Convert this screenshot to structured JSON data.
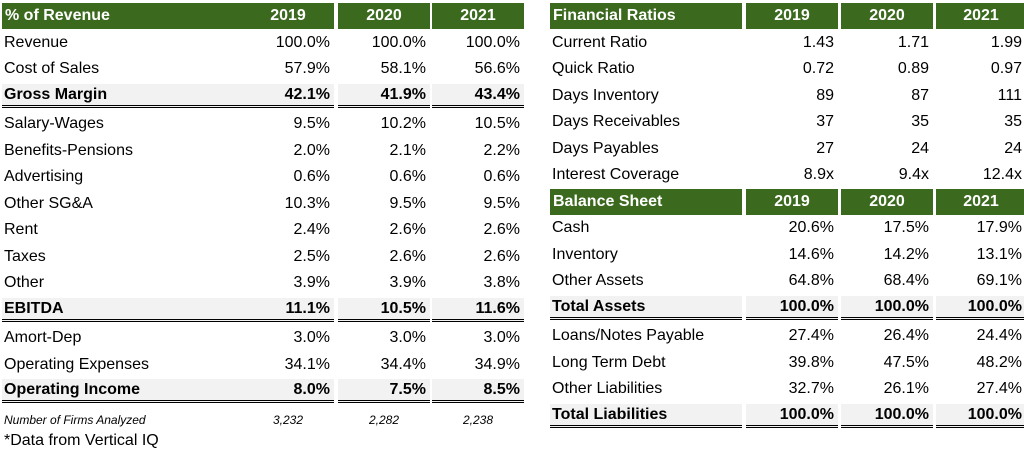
{
  "left_table": {
    "header": {
      "title": "% of Revenue",
      "years": [
        "2019",
        "2020",
        "2021"
      ]
    },
    "rows": [
      {
        "label": "Revenue",
        "values": [
          "100.0%",
          "100.0%",
          "100.0%"
        ],
        "bold": false
      },
      {
        "label": "Cost of Sales",
        "values": [
          "57.9%",
          "58.1%",
          "56.6%"
        ],
        "bold": false
      },
      {
        "label": "Gross Margin",
        "values": [
          "42.1%",
          "41.9%",
          "43.4%"
        ],
        "bold": true
      },
      {
        "label": "Salary-Wages",
        "values": [
          "9.5%",
          "10.2%",
          "10.5%"
        ],
        "bold": false
      },
      {
        "label": "Benefits-Pensions",
        "values": [
          "2.0%",
          "2.1%",
          "2.2%"
        ],
        "bold": false
      },
      {
        "label": "Advertising",
        "values": [
          "0.6%",
          "0.6%",
          "0.6%"
        ],
        "bold": false
      },
      {
        "label": "Other SG&A",
        "values": [
          "10.3%",
          "9.5%",
          "9.5%"
        ],
        "bold": false
      },
      {
        "label": "Rent",
        "values": [
          "2.4%",
          "2.6%",
          "2.6%"
        ],
        "bold": false
      },
      {
        "label": "Taxes",
        "values": [
          "2.5%",
          "2.6%",
          "2.6%"
        ],
        "bold": false
      },
      {
        "label": "Other",
        "values": [
          "3.9%",
          "3.9%",
          "3.8%"
        ],
        "bold": false
      },
      {
        "label": "EBITDA",
        "values": [
          "11.1%",
          "10.5%",
          "11.6%"
        ],
        "bold": true
      },
      {
        "label": "Amort-Dep",
        "values": [
          "3.0%",
          "3.0%",
          "3.0%"
        ],
        "bold": false
      },
      {
        "label": "Operating Expenses",
        "values": [
          "34.1%",
          "34.4%",
          "34.9%"
        ],
        "bold": false
      },
      {
        "label": "Operating Income",
        "values": [
          "8.0%",
          "7.5%",
          "8.5%"
        ],
        "bold": true
      }
    ],
    "note": {
      "label": "Number of Firms Analyzed",
      "values": [
        "3,232",
        "2,282",
        "2,238"
      ]
    }
  },
  "right_table": {
    "ratios_header": {
      "title": "Financial Ratios",
      "years": [
        "2019",
        "2020",
        "2021"
      ]
    },
    "ratios": [
      {
        "label": "Current Ratio",
        "values": [
          "1.43",
          "1.71",
          "1.99"
        ]
      },
      {
        "label": "Quick Ratio",
        "values": [
          "0.72",
          "0.89",
          "0.97"
        ]
      },
      {
        "label": "Days Inventory",
        "values": [
          "89",
          "87",
          "111"
        ]
      },
      {
        "label": "Days Receivables",
        "values": [
          "37",
          "35",
          "35"
        ]
      },
      {
        "label": "Days Payables",
        "values": [
          "27",
          "24",
          "24"
        ]
      },
      {
        "label": "Interest Coverage",
        "values": [
          "8.9x",
          "9.4x",
          "12.4x"
        ]
      }
    ],
    "balance_header": {
      "title": "Balance Sheet",
      "years": [
        "2019",
        "2020",
        "2021"
      ]
    },
    "balance": [
      {
        "label": "Cash",
        "values": [
          "20.6%",
          "17.5%",
          "17.9%"
        ],
        "bold": false
      },
      {
        "label": "Inventory",
        "values": [
          "14.6%",
          "14.2%",
          "13.1%"
        ],
        "bold": false
      },
      {
        "label": "Other Assets",
        "values": [
          "64.8%",
          "68.4%",
          "69.1%"
        ],
        "bold": false
      },
      {
        "label": "Total Assets",
        "values": [
          "100.0%",
          "100.0%",
          "100.0%"
        ],
        "bold": true
      },
      {
        "label": "Loans/Notes Payable",
        "values": [
          "27.4%",
          "26.4%",
          "24.4%"
        ],
        "bold": false
      },
      {
        "label": "Long Term Debt",
        "values": [
          "39.8%",
          "47.5%",
          "48.2%"
        ],
        "bold": false
      },
      {
        "label": "Other Liabilities",
        "values": [
          "32.7%",
          "26.1%",
          "27.4%"
        ],
        "bold": false
      },
      {
        "label": "Total Liabilities",
        "values": [
          "100.0%",
          "100.0%",
          "100.0%"
        ],
        "bold": true
      }
    ]
  },
  "footnote": "*Data from Vertical IQ",
  "colors": {
    "header_bg": "#3b6a1e",
    "header_text": "#ffffff",
    "total_row_bg": "#f2f2f2"
  }
}
